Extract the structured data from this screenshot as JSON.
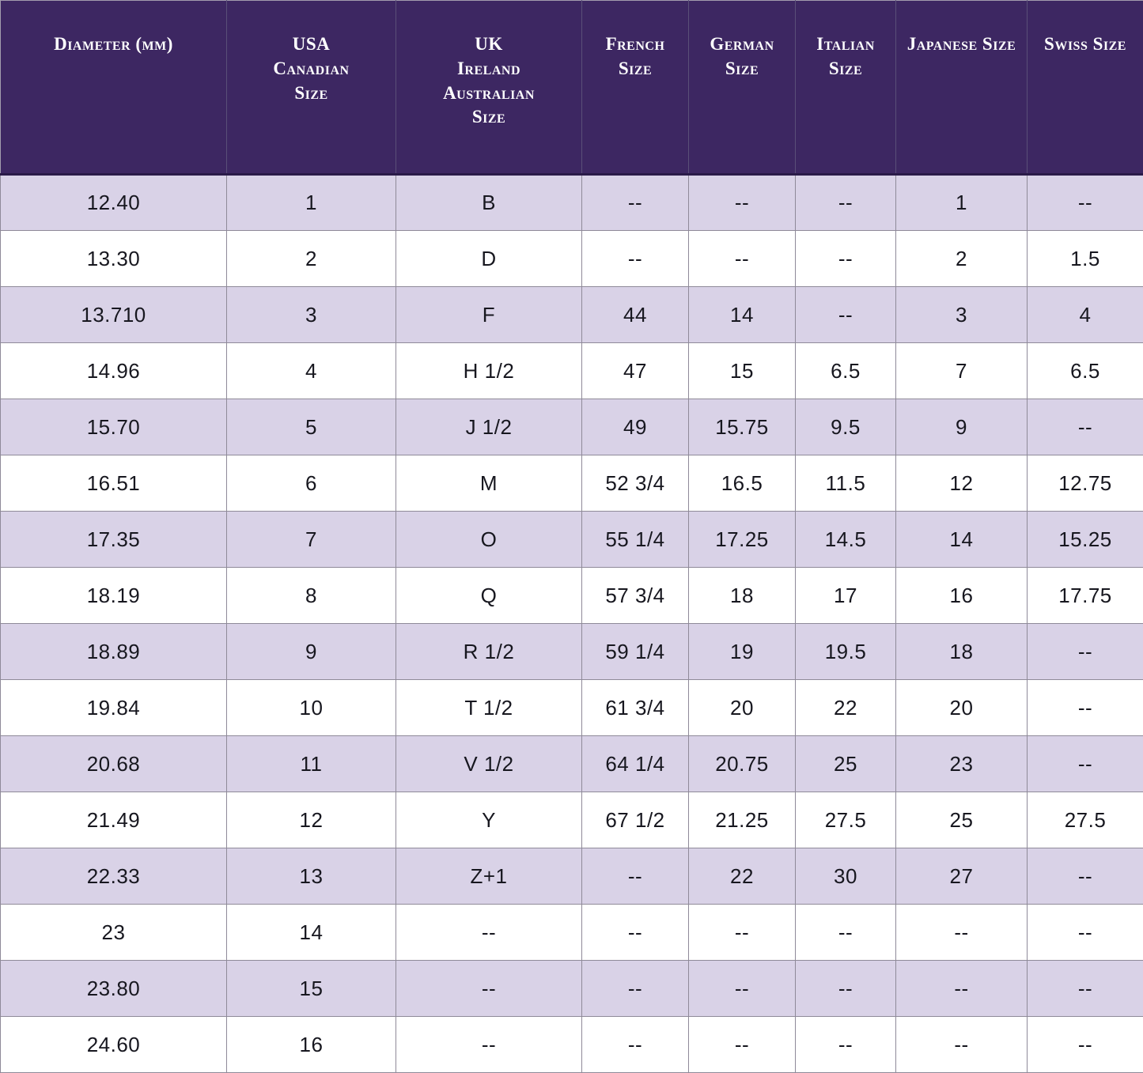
{
  "colors": {
    "header_bg": "#3d2762",
    "header_text": "#ffffff",
    "row_alt_bg": "#d9d2e7",
    "row_bg": "#ffffff",
    "grid_line": "#8f8a99",
    "body_text": "#17171f"
  },
  "chart_data": {
    "type": "table",
    "empty_marker": "--",
    "columns": [
      {
        "key": "diameter-mm",
        "label": [
          "Diameter (mm)"
        ]
      },
      {
        "key": "usa-canadian-size",
        "label": [
          "USA",
          "Canadian",
          "Size"
        ]
      },
      {
        "key": "uk-ireland-australian-size",
        "label": [
          "UK",
          "Ireland",
          "Australian",
          "Size"
        ]
      },
      {
        "key": "french-size",
        "label": [
          "French",
          "Size"
        ]
      },
      {
        "key": "german-size",
        "label": [
          "German",
          "Size"
        ]
      },
      {
        "key": "italian-size",
        "label": [
          "Italian",
          "Size"
        ]
      },
      {
        "key": "japanese-size",
        "label": [
          "Japanese Size"
        ]
      },
      {
        "key": "swiss-size",
        "label": [
          "Swiss Size"
        ]
      }
    ],
    "rows": [
      [
        "12.40",
        "1",
        "B",
        "--",
        "--",
        "--",
        "1",
        "--"
      ],
      [
        "13.30",
        "2",
        "D",
        "--",
        "--",
        "--",
        "2",
        "1.5"
      ],
      [
        "13.710",
        "3",
        "F",
        "44",
        "14",
        "--",
        "3",
        "4"
      ],
      [
        "14.96",
        "4",
        "H 1/2",
        "47",
        "15",
        "6.5",
        "7",
        "6.5"
      ],
      [
        "15.70",
        "5",
        "J 1/2",
        "49",
        "15.75",
        "9.5",
        "9",
        "--"
      ],
      [
        "16.51",
        "6",
        "M",
        "52 3/4",
        "16.5",
        "11.5",
        "12",
        "12.75"
      ],
      [
        "17.35",
        "7",
        "O",
        "55 1/4",
        "17.25",
        "14.5",
        "14",
        "15.25"
      ],
      [
        "18.19",
        "8",
        "Q",
        "57 3/4",
        "18",
        "17",
        "16",
        "17.75"
      ],
      [
        "18.89",
        "9",
        "R 1/2",
        "59 1/4",
        "19",
        "19.5",
        "18",
        "--"
      ],
      [
        "19.84",
        "10",
        "T 1/2",
        "61 3/4",
        "20",
        "22",
        "20",
        "--"
      ],
      [
        "20.68",
        "11",
        "V 1/2",
        "64 1/4",
        "20.75",
        "25",
        "23",
        "--"
      ],
      [
        "21.49",
        "12",
        "Y",
        "67 1/2",
        "21.25",
        "27.5",
        "25",
        "27.5"
      ],
      [
        "22.33",
        "13",
        "Z+1",
        "--",
        "22",
        "30",
        "27",
        "--"
      ],
      [
        "23",
        "14",
        "--",
        "--",
        "--",
        "--",
        "--",
        "--"
      ],
      [
        "23.80",
        "15",
        "--",
        "--",
        "--",
        "--",
        "--",
        "--"
      ],
      [
        "24.60",
        "16",
        "--",
        "--",
        "--",
        "--",
        "--",
        "--"
      ]
    ]
  }
}
